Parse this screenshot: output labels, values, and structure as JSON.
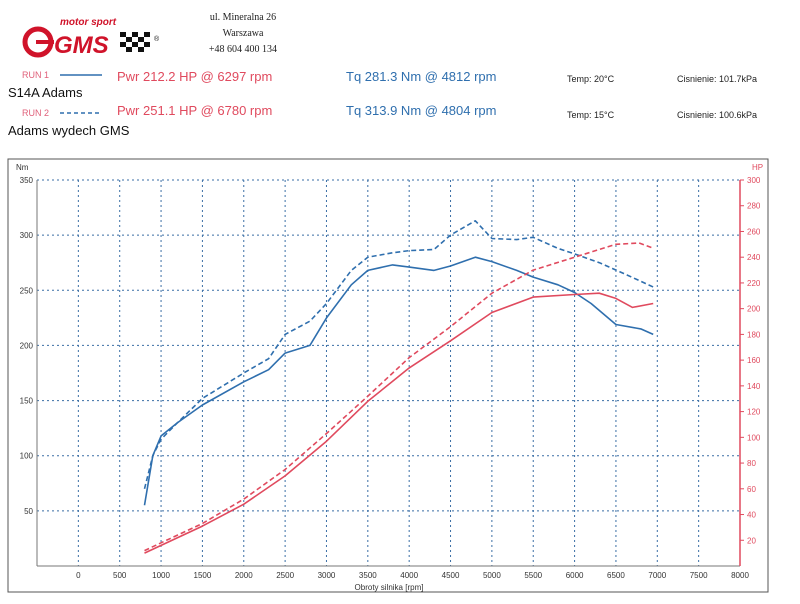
{
  "header": {
    "logo_top": "motor sport",
    "logo_main": "GMS",
    "logo_reg": "®",
    "address": [
      "ul. Mineralna 26",
      "Warszawa",
      "+48 604 400 134"
    ]
  },
  "runs": [
    {
      "run_label": "RUN 1",
      "name": "S14A  Adams",
      "pwr": "Pwr 212.2 HP @ 6297 rpm",
      "tq": "Tq 281.3 Nm @ 4812 rpm",
      "temp": "Temp: 20°C",
      "pressure": "Cisnienie: 101.7kPa"
    },
    {
      "run_label": "RUN 2",
      "name": "Adams wydech GMS",
      "pwr": "Pwr 251.1 HP @ 6780 rpm",
      "tq": "Tq 313.9 Nm @ 4804 rpm",
      "temp": "Temp: 15°C",
      "pressure": "Cisnienie: 100.6kPa"
    }
  ],
  "colors": {
    "torque": "#2f6fae",
    "power": "#e04a5e",
    "grid": "#3a6ea5"
  },
  "chart_data": {
    "type": "line",
    "xlabel": "Obroty silnika [rpm]",
    "ylabel_left": "Nm",
    "ylabel_right": "HP",
    "xlim": [
      -500,
      8000
    ],
    "ylim_left": [
      0,
      350
    ],
    "ylim_right": [
      0,
      300
    ],
    "x_ticks": [
      0,
      500,
      1000,
      1500,
      2000,
      2500,
      3000,
      3500,
      4000,
      4500,
      5000,
      5500,
      6000,
      6500,
      7000,
      7500,
      8000
    ],
    "y_ticks_left": [
      50,
      100,
      150,
      200,
      250,
      300,
      350
    ],
    "y_ticks_right": [
      20,
      40,
      60,
      80,
      100,
      120,
      140,
      160,
      180,
      200,
      220,
      240,
      260,
      280,
      300
    ],
    "grid": true,
    "series": [
      {
        "name": "RUN 1",
        "quantity": "torque",
        "axis": "left",
        "dash": false,
        "x": [
          800,
          900,
          1000,
          1200,
          1500,
          2000,
          2300,
          2500,
          2800,
          3000,
          3300,
          3500,
          3800,
          4000,
          4300,
          4500,
          4800,
          5000,
          5300,
          5500,
          5800,
          6000,
          6200,
          6500,
          6800,
          6950
        ],
        "y": [
          55,
          100,
          118,
          130,
          146,
          167,
          178,
          193,
          200,
          225,
          255,
          268,
          273,
          271,
          268,
          272,
          280,
          276,
          268,
          262,
          255,
          248,
          238,
          219,
          215,
          210
        ]
      },
      {
        "name": "RUN 2",
        "quantity": "torque",
        "axis": "left",
        "dash": true,
        "x": [
          800,
          900,
          1000,
          1200,
          1500,
          2000,
          2300,
          2500,
          2800,
          3000,
          3300,
          3500,
          3800,
          4000,
          4300,
          4500,
          4800,
          5000,
          5300,
          5500,
          5800,
          6000,
          6300,
          6600,
          6950
        ],
        "y": [
          70,
          100,
          115,
          130,
          152,
          175,
          188,
          210,
          222,
          238,
          268,
          280,
          284,
          286,
          287,
          300,
          313,
          297,
          296,
          298,
          288,
          283,
          275,
          265,
          253
        ]
      },
      {
        "name": "RUN 1",
        "quantity": "power",
        "axis": "right",
        "dash": false,
        "x": [
          800,
          1000,
          1500,
          2000,
          2500,
          3000,
          3500,
          4000,
          4500,
          5000,
          5500,
          6000,
          6297,
          6500,
          6700,
          6950
        ],
        "y": [
          10,
          16,
          31,
          48,
          70,
          97,
          128,
          154,
          175,
          197,
          209,
          211,
          212,
          208,
          201,
          204
        ]
      },
      {
        "name": "RUN 2",
        "quantity": "power",
        "axis": "right",
        "dash": true,
        "x": [
          800,
          1000,
          1500,
          2000,
          2500,
          3000,
          3500,
          4000,
          4500,
          5000,
          5500,
          6000,
          6500,
          6780,
          6950
        ],
        "y": [
          12,
          18,
          33,
          52,
          75,
          103,
          132,
          162,
          186,
          212,
          230,
          240,
          250,
          251,
          247
        ]
      }
    ]
  }
}
